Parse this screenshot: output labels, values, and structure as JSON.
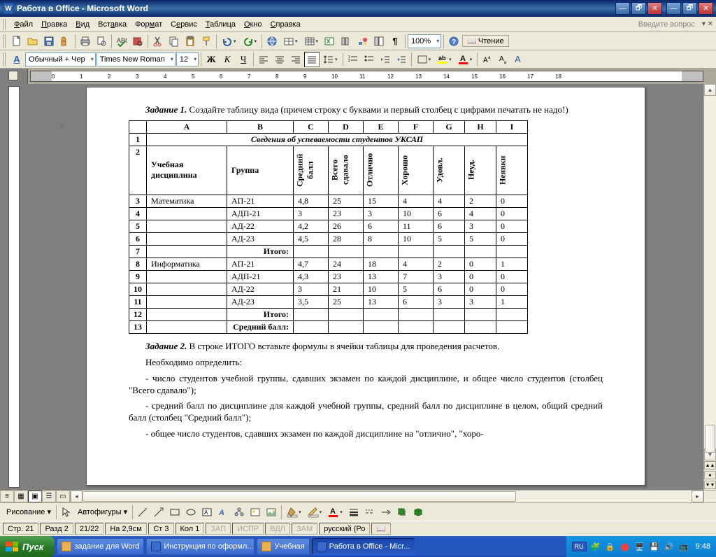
{
  "window": {
    "title": "Работа в Office - Microsoft Word",
    "app_icon_letter": "W"
  },
  "menu": {
    "items": [
      "Файл",
      "Правка",
      "Вид",
      "Вставка",
      "Формат",
      "Сервис",
      "Таблица",
      "Окно",
      "Справка"
    ],
    "ask": "Введите вопрос"
  },
  "toolbar1": {
    "zoom": "100%",
    "read_label": "Чтение"
  },
  "toolbar2": {
    "aa": "A",
    "style": "Обычный + Чер",
    "font": "Times New Roman",
    "size": "12",
    "lang_btn": "A"
  },
  "doc": {
    "task1_label": "Задание 1.",
    "task1_text": "Создайте таблицу вида (причем строку с буквами и первый столбец с цифрами печатать не надо!)",
    "letters": [
      "A",
      "B",
      "C",
      "D",
      "E",
      "F",
      "G",
      "H",
      "I"
    ],
    "title_row": "Сведения об успеваемости студентов УКСАП",
    "headers": {
      "subject": "Учебная дисциплина",
      "group": "Группа",
      "avg": "Средний балл",
      "total": "Всего сдавало",
      "excel": "Отлично",
      "good": "Хорошо",
      "sat": "Удовл.",
      "fail": "Неуд.",
      "absent": "Неявки"
    },
    "rows": [
      {
        "n": "3",
        "subj": "Математика",
        "grp": "АП-21",
        "avg": "4,8",
        "tot": "25",
        "ex": "15",
        "gd": "4",
        "st": "4",
        "fl": "2",
        "ab": "0"
      },
      {
        "n": "4",
        "subj": "",
        "grp": "АДП-21",
        "avg": "3",
        "tot": "23",
        "ex": "3",
        "gd": "10",
        "st": "6",
        "fl": "4",
        "ab": "0"
      },
      {
        "n": "5",
        "subj": "",
        "grp": "АД-22",
        "avg": "4,2",
        "tot": "26",
        "ex": "6",
        "gd": "11",
        "st": "6",
        "fl": "3",
        "ab": "0"
      },
      {
        "n": "6",
        "subj": "",
        "grp": "АД-23",
        "avg": "4,5",
        "tot": "28",
        "ex": "8",
        "gd": "10",
        "st": "5",
        "fl": "5",
        "ab": "0"
      },
      {
        "n": "7",
        "subj": "",
        "grp": "Итого:",
        "avg": "",
        "tot": "",
        "ex": "",
        "gd": "",
        "st": "",
        "fl": "",
        "ab": "",
        "itogo": true
      },
      {
        "n": "8",
        "subj": "Информатика",
        "grp": "АП-21",
        "avg": "4,7",
        "tot": "24",
        "ex": "18",
        "gd": "4",
        "st": "2",
        "fl": "0",
        "ab": "1"
      },
      {
        "n": "9",
        "subj": "",
        "grp": "АДП-21",
        "avg": "4,3",
        "tot": "23",
        "ex": "13",
        "gd": "7",
        "st": "3",
        "fl": "0",
        "ab": "0"
      },
      {
        "n": "10",
        "subj": "",
        "grp": "АД-22",
        "avg": "3",
        "tot": "21",
        "ex": "10",
        "gd": "5",
        "st": "6",
        "fl": "0",
        "ab": "0"
      },
      {
        "n": "11",
        "subj": "",
        "grp": "АД-23",
        "avg": "3,5",
        "tot": "25",
        "ex": "13",
        "gd": "6",
        "st": "3",
        "fl": "3",
        "ab": "1"
      },
      {
        "n": "12",
        "subj": "",
        "grp": "Итого:",
        "avg": "",
        "tot": "",
        "ex": "",
        "gd": "",
        "st": "",
        "fl": "",
        "ab": "",
        "itogo": true
      },
      {
        "n": "13",
        "subj": "",
        "grp": "Средний балл:",
        "avg": "",
        "tot": "",
        "ex": "",
        "gd": "",
        "st": "",
        "fl": "",
        "ab": "",
        "itogo": true
      }
    ],
    "task2_label": "Задание 2.",
    "task2_text": "В строке ИТОГО вставьте формулы в ячейки таблицы для проведения расчетов.",
    "p3": "Необходимо определить:",
    "p4": "- число студентов учебной группы, сдавших экзамен по каждой дисциплине, и общее число студентов (столбец \"Всего сдавало\");",
    "p5": "- средний балл по дисциплине для каждой учебной группы, средний балл по дисциплине в целом, общий средний балл (столбец \"Средний балл\");",
    "p6": "- общее число студентов, сдавших экзамен по каждой дисциплине на \"отлично\", \"хоро-"
  },
  "drawbar": {
    "label": "Рисование",
    "autoshapes": "Автофигуры"
  },
  "status": {
    "page": "Стр. 21",
    "sect": "Разд 2",
    "pages": "21/22",
    "at": "На 2,9см",
    "line": "Ст 3",
    "col": "Кол 1",
    "rec": "ЗАП",
    "trk": "ИСПР",
    "ext": "ВДЛ",
    "ovr": "ЗАМ",
    "lang": "русский (Ро"
  },
  "taskbar": {
    "start": "Пуск",
    "items": [
      {
        "label": "задание для Word",
        "icon": "folder"
      },
      {
        "label": "Инструкция по оформл...",
        "icon": "word"
      },
      {
        "label": "Учебная",
        "icon": "folder"
      },
      {
        "label": "Работа в Office - Micr...",
        "icon": "word",
        "active": true
      }
    ],
    "lang": "RU",
    "clock": "9:48"
  }
}
